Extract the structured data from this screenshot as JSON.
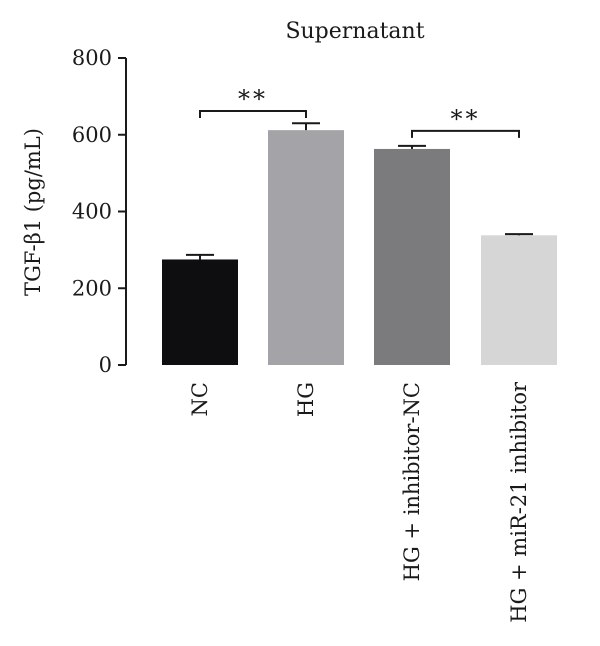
{
  "chart_data": {
    "type": "bar",
    "title": "Supernatant",
    "ylabel": "TGF-β1 (pg/mL)",
    "xlabel": "",
    "ylim": [
      0,
      800
    ],
    "yticks": [
      0,
      200,
      400,
      600,
      800
    ],
    "categories": [
      "NC",
      "HG",
      "HG + inhibitor-NC",
      "HG + miR-21 inhibitor"
    ],
    "values": [
      275,
      612,
      563,
      338
    ],
    "errors": [
      12,
      18,
      8,
      3
    ],
    "colors": [
      "#0e0e10",
      "#a4a4a8",
      "#7b7b7d",
      "#d6d6d6"
    ],
    "significance": [
      {
        "from": 0,
        "to": 1,
        "label": "**",
        "level": 662
      },
      {
        "from": 2,
        "to": 3,
        "label": "**",
        "level": 610
      }
    ],
    "grid": false,
    "legend": "none"
  }
}
